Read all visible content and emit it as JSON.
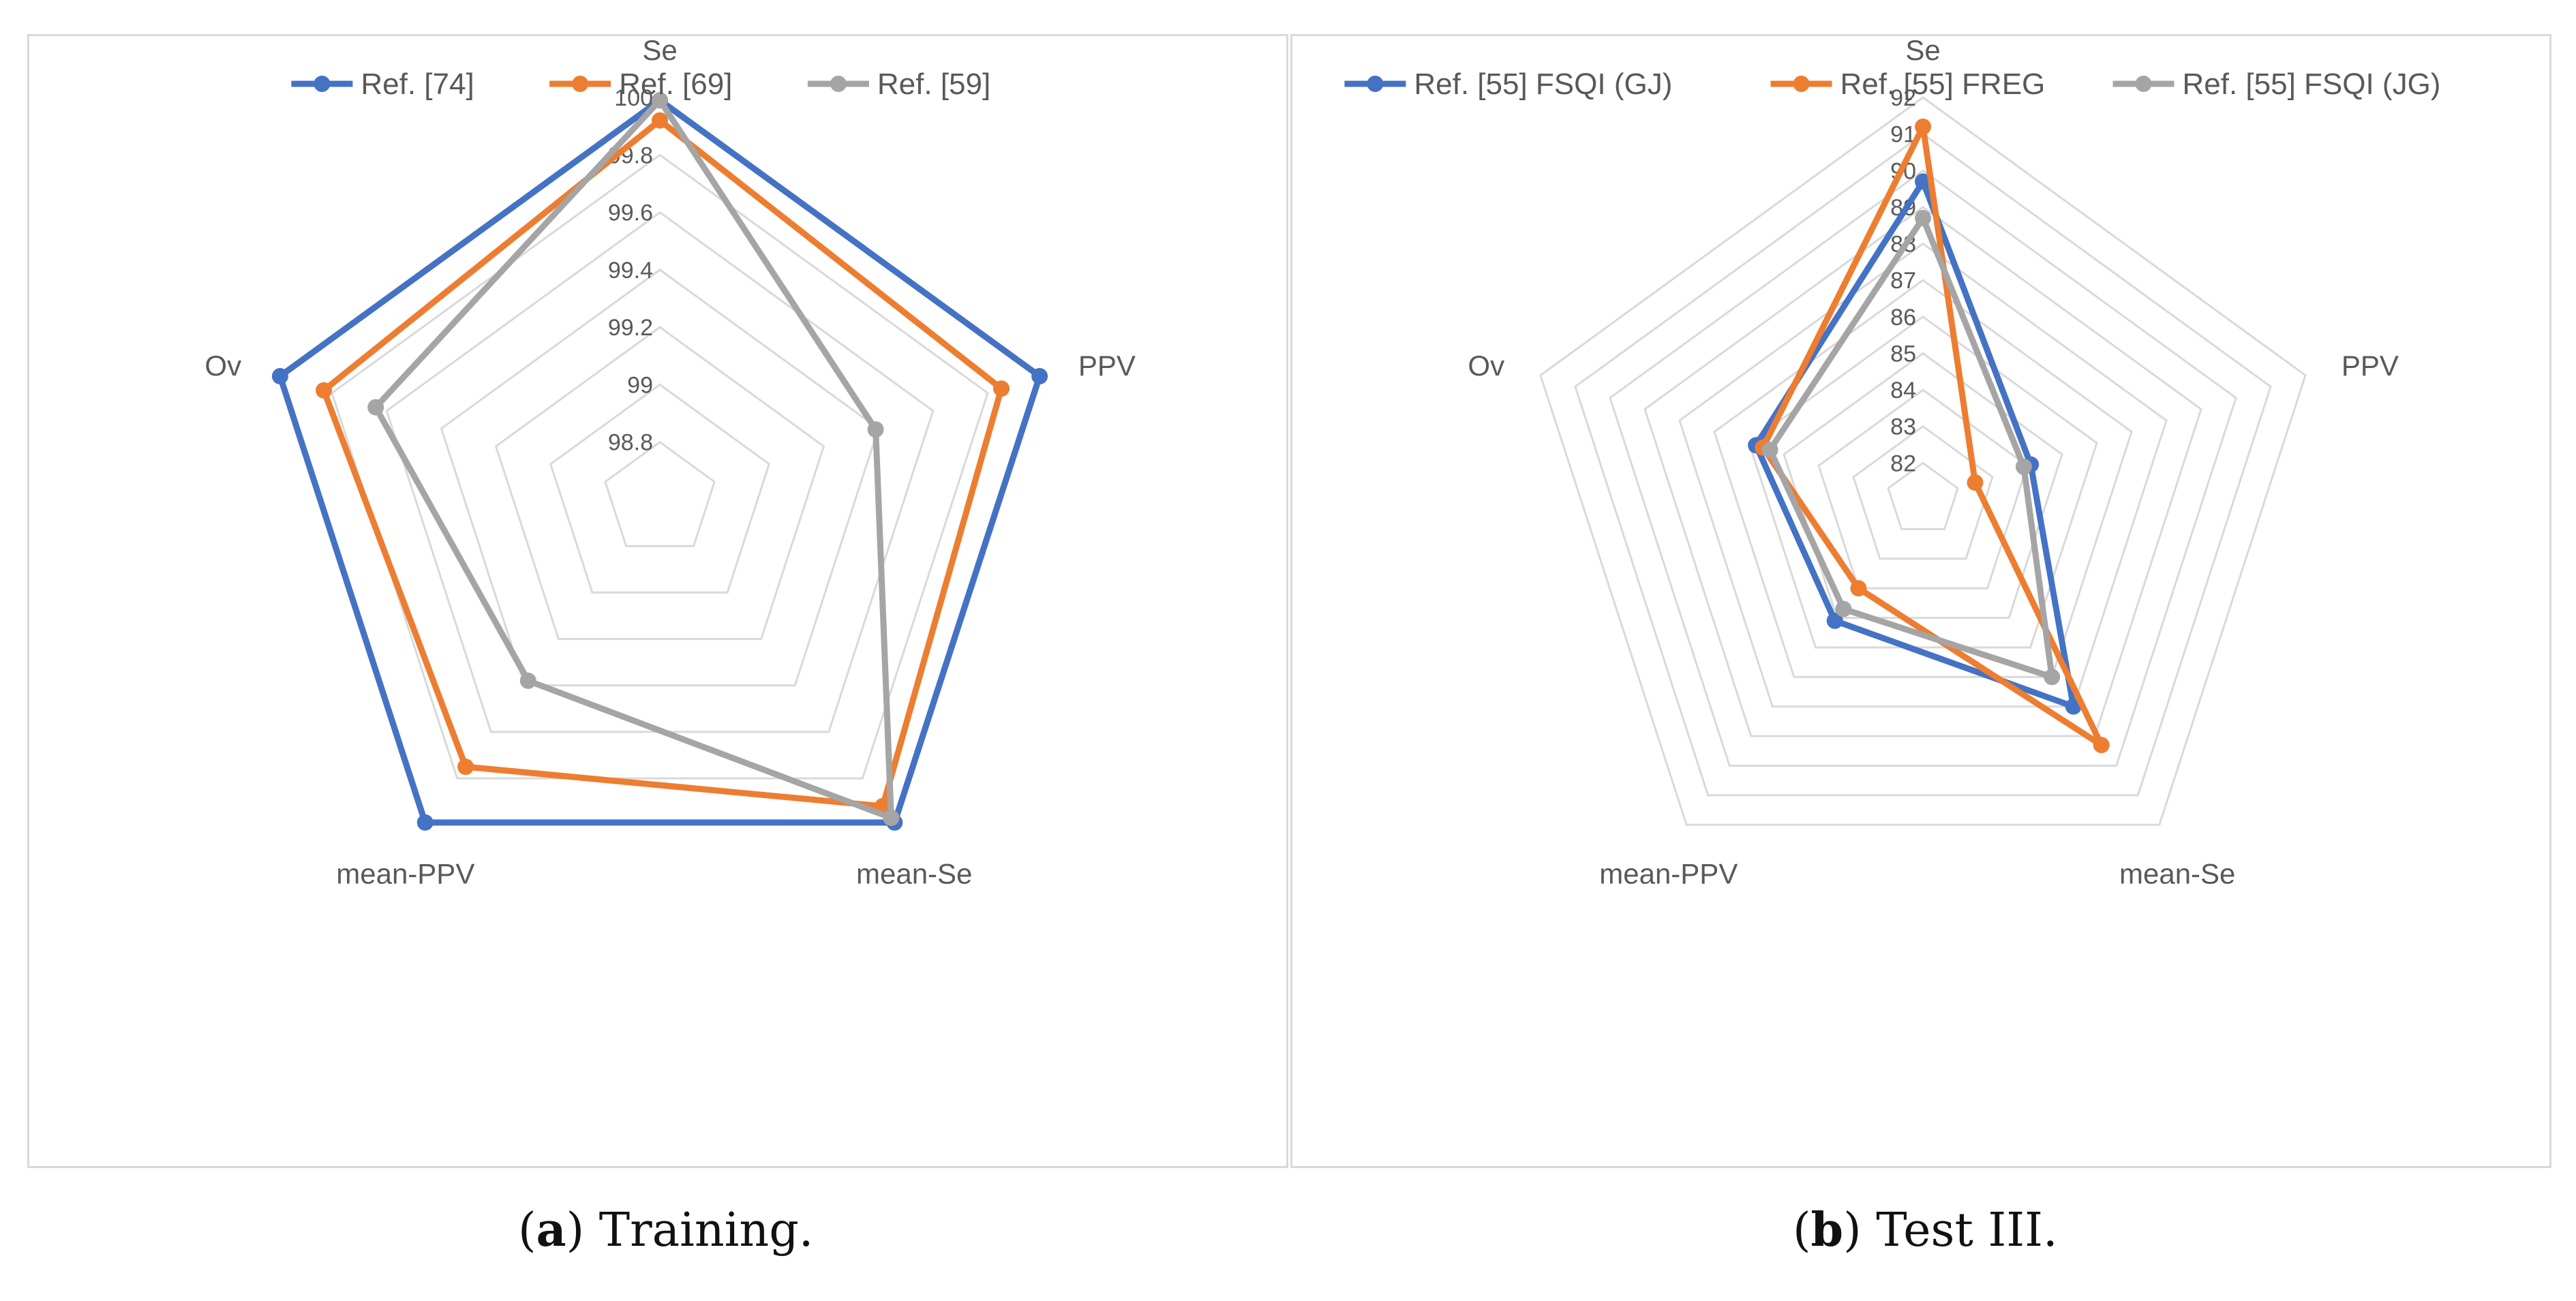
{
  "colors": {
    "blue": "#4472C4",
    "orange": "#ED7D31",
    "gray": "#A5A5A5",
    "grid": "#d9d9d9",
    "text": "#595959"
  },
  "chart_data": [
    {
      "type": "radar",
      "panel": "a",
      "title": "",
      "axes": [
        "Se",
        "PPV",
        "mean-Se",
        "mean-PPV",
        "Ov"
      ],
      "tick_labels": [
        "98.8",
        "99",
        "99.2",
        "99.4",
        "99.6",
        "99.8",
        "100"
      ],
      "range": [
        98.6,
        100
      ],
      "series": [
        {
          "name": "Ref. [74]",
          "color": "#4472C4",
          "values": [
            99.99,
            99.99,
            99.99,
            99.99,
            99.99
          ]
        },
        {
          "name": "Ref. [69]",
          "color": "#ED7D31",
          "values": [
            99.92,
            99.85,
            99.92,
            99.75,
            99.83
          ]
        },
        {
          "name": "Ref. [59]",
          "color": "#A5A5A5",
          "values": [
            99.99,
            99.39,
            99.97,
            99.38,
            99.64
          ]
        }
      ],
      "legend_position": "top"
    },
    {
      "type": "radar",
      "panel": "b",
      "title": "",
      "axes": [
        "Se",
        "PPV",
        "mean-Se",
        "mean-PPV",
        "Ov"
      ],
      "tick_labels": [
        "82",
        "83",
        "84",
        "85",
        "86",
        "87",
        "88",
        "89",
        "90",
        "91",
        "92"
      ],
      "range": [
        81,
        92
      ],
      "series": [
        {
          "name": "Ref. [55] FSQI (GJ)",
          "color": "#4472C4",
          "values": [
            89.7,
            84.1,
            88.0,
            85.1,
            85.8
          ]
        },
        {
          "name": "Ref. [55] FREG",
          "color": "#ED7D31",
          "values": [
            91.2,
            82.5,
            89.3,
            84.0,
            85.6
          ]
        },
        {
          "name": "Ref. [55] FSQI (JG)",
          "color": "#A5A5A5",
          "values": [
            88.7,
            83.9,
            87.0,
            84.7,
            85.4
          ]
        }
      ],
      "legend_position": "top"
    }
  ],
  "captions": {
    "a": {
      "letter": "a",
      "text": " Training."
    },
    "b": {
      "letter": "b",
      "text": " Test III."
    }
  }
}
